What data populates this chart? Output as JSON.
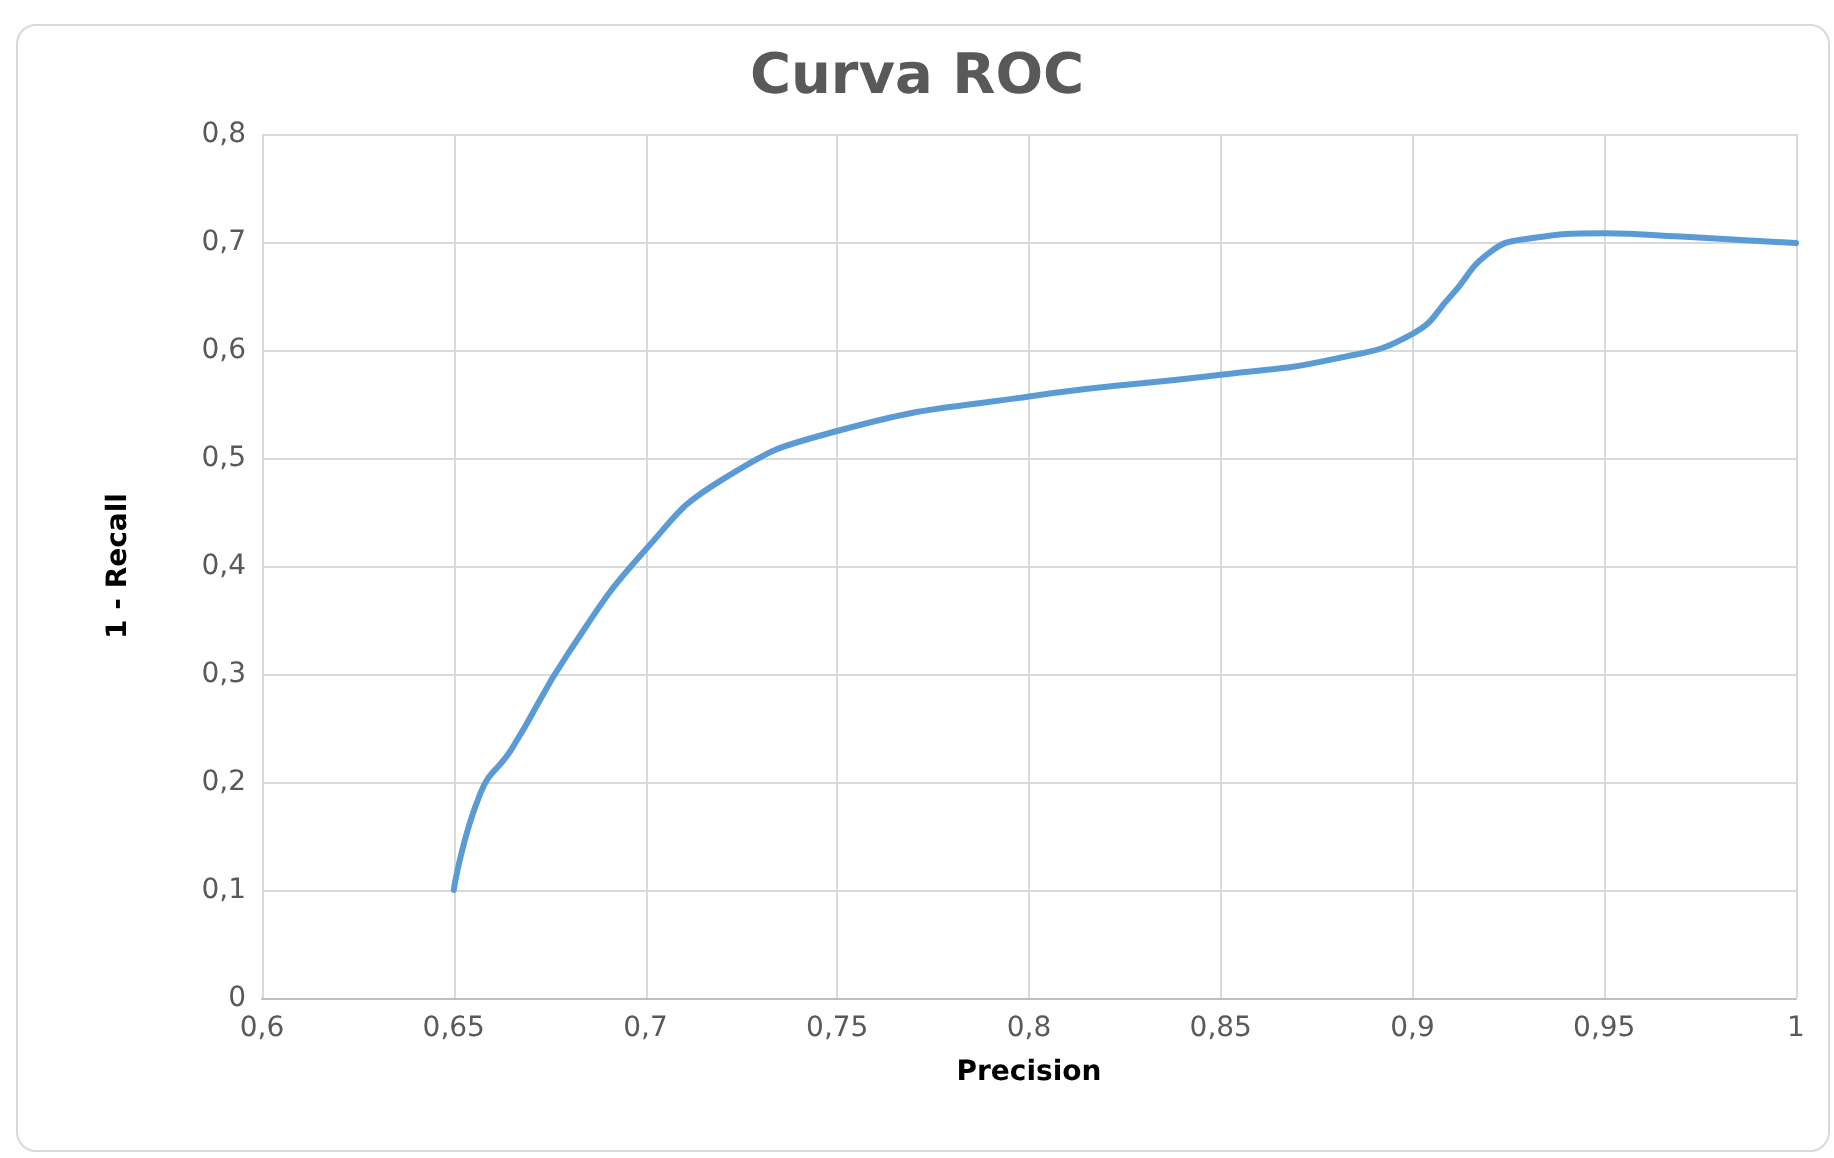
{
  "chart_data": {
    "type": "line",
    "title": "Curva ROC",
    "xlabel": "Precision",
    "ylabel": "1 - Recall",
    "x": [
      0.65,
      0.657,
      0.665,
      0.68,
      0.7,
      0.72,
      0.75,
      0.8,
      0.85,
      0.88,
      0.9,
      0.91,
      0.92,
      0.93,
      0.95,
      0.97,
      1
    ],
    "series": [
      {
        "color": "#5b9bd5",
        "values": [
          0.1,
          0.19,
          0.23,
          0.32,
          0.415,
          0.48,
          0.525,
          0.557,
          0.577,
          0.592,
          0.615,
          0.65,
          0.69,
          0.703,
          0.708,
          0.705,
          0.699
        ]
      }
    ],
    "xlim": [
      0.6,
      1
    ],
    "xticks": [
      {
        "value": 0.6,
        "label": "0,6"
      },
      {
        "value": 0.65,
        "label": "0,65"
      },
      {
        "value": 0.7,
        "label": "0,7"
      },
      {
        "value": 0.75,
        "label": "0,75"
      },
      {
        "value": 0.8,
        "label": "0,8"
      },
      {
        "value": 0.85,
        "label": "0,85"
      },
      {
        "value": 0.9,
        "label": "0,9"
      },
      {
        "value": 0.95,
        "label": "0,95"
      },
      {
        "value": 1,
        "label": "1"
      }
    ],
    "ylim": [
      0,
      0.8
    ],
    "yticks": [
      0,
      {
        "value": 0.1,
        "label": "0,1"
      },
      {
        "value": 0.2,
        "label": "0,2"
      },
      {
        "value": 0.3,
        "label": "0,3"
      },
      {
        "value": 0.4,
        "label": "0,4"
      },
      {
        "value": 0.5,
        "label": "0,5"
      },
      {
        "value": 0.6,
        "label": "0,6"
      },
      {
        "value": 0.7,
        "label": "0,7"
      },
      {
        "value": 0.8,
        "label": "0,8"
      }
    ],
    "grid": true,
    "marker": "none",
    "line_style": "solid"
  }
}
